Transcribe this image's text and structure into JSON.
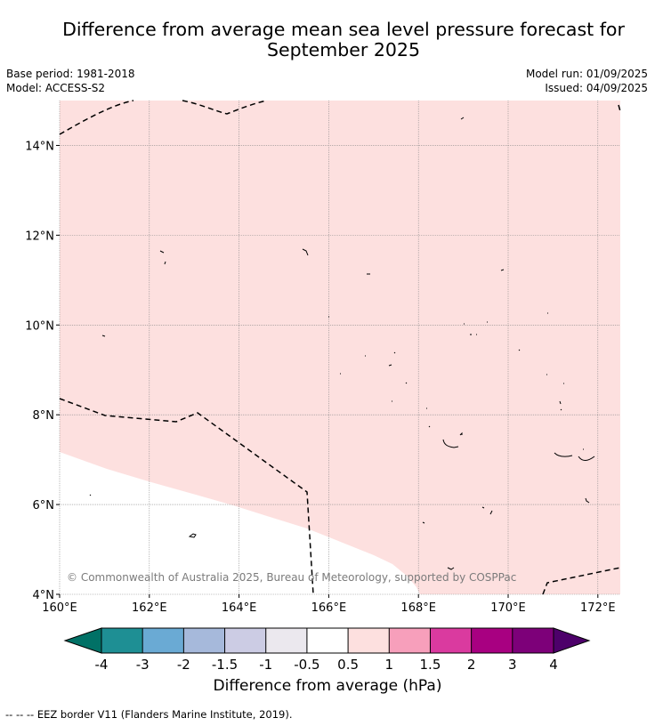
{
  "title": {
    "line1": "Difference from average mean sea level pressure forecast for",
    "line2": "September 2025"
  },
  "meta": {
    "base_period": "Base period: 1981-2018",
    "model": "Model: ACCESS-S2",
    "model_run": "Model run: 01/09/2025",
    "issued": "Issued: 04/09/2025"
  },
  "map": {
    "lon_range": [
      160,
      172.5
    ],
    "lat_range": [
      4,
      15
    ],
    "lon_ticks": [
      {
        "value": 160,
        "label": "160°E"
      },
      {
        "value": 162,
        "label": "162°E"
      },
      {
        "value": 164,
        "label": "164°E"
      },
      {
        "value": 166,
        "label": "166°E"
      },
      {
        "value": 168,
        "label": "168°E"
      },
      {
        "value": 170,
        "label": "170°E"
      },
      {
        "value": 172,
        "label": "172°E"
      }
    ],
    "lat_ticks": [
      {
        "value": 4,
        "label": "4°N"
      },
      {
        "value": 6,
        "label": "6°N"
      },
      {
        "value": 8,
        "label": "8°N"
      },
      {
        "value": 10,
        "label": "10°N"
      },
      {
        "value": 12,
        "label": "12°N"
      },
      {
        "value": 14,
        "label": "14°N"
      }
    ],
    "fill_color": "#fde0df",
    "fill_category": "0.5 to 1 hPa",
    "white_category": "-0.5 to 0.5 hPa",
    "grid": true,
    "copyright": "© Commonwealth of Australia 2025, Bureau of Meteorology, supported by COSPPac"
  },
  "colorbar": {
    "title": "Difference from average (hPa)",
    "tick_labels": [
      "-4",
      "-3",
      "-2",
      "-1.5",
      "-1",
      "-0.5",
      "0.5",
      "1",
      "1.5",
      "2",
      "3",
      "4"
    ],
    "colors": [
      "#1e8f94",
      "#6aaad4",
      "#a6b9db",
      "#cccce4",
      "#ebe8ee",
      "#ffffff",
      "#fde0df",
      "#f79fbb",
      "#da3a9f",
      "#a80081",
      "#7d0079"
    ],
    "extend_low_color": "#017166",
    "extend_high_color": "#4d006a"
  },
  "footer": {
    "legend": "-- -- -- EEZ border V11 (Flanders Marine Institute, 2019)."
  }
}
